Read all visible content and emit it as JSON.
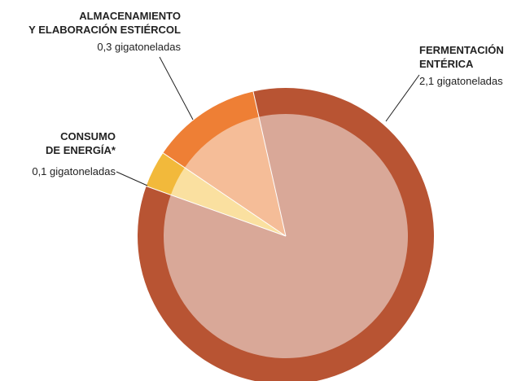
{
  "chart_data": {
    "type": "pie",
    "categories": [
      [
        "FERMENTACIÓN",
        "ENTÉRICA"
      ],
      [
        "CONSUMO",
        "DE ENERGÍA*"
      ],
      [
        "ALMACENAMIENTO",
        "Y ELABORACIÓN ESTIÉRCOL"
      ]
    ],
    "values": [
      2.1,
      0.1,
      0.3
    ],
    "value_labels": [
      "2,1 gigatoneladas",
      "0,1 gigatoneladas",
      "0,3 gigatoneladas"
    ],
    "colors": [
      "#b85433",
      "#f2b93b",
      "#ee7f35"
    ],
    "inner_colors": [
      "#d9a898",
      "#fae0a0",
      "#f5bd98"
    ]
  }
}
